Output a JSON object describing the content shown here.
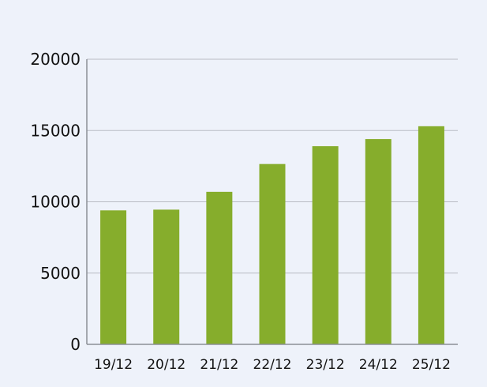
{
  "colors": {
    "background": "#eef2fa",
    "bar": "#86ad2c",
    "grid": "#b9bcc4",
    "axis": "#8c8f96"
  },
  "chart_data": {
    "type": "bar",
    "title": "",
    "xlabel": "",
    "ylabel": "",
    "categories": [
      "19/12",
      "20/12",
      "21/12",
      "22/12",
      "23/12",
      "24/12",
      "25/12"
    ],
    "values": [
      9400,
      9450,
      10700,
      12650,
      13900,
      14400,
      15300
    ],
    "ylim": [
      0,
      20000
    ],
    "yticks": [
      0,
      5000,
      10000,
      15000,
      20000
    ],
    "grid": true,
    "legend": "none"
  }
}
